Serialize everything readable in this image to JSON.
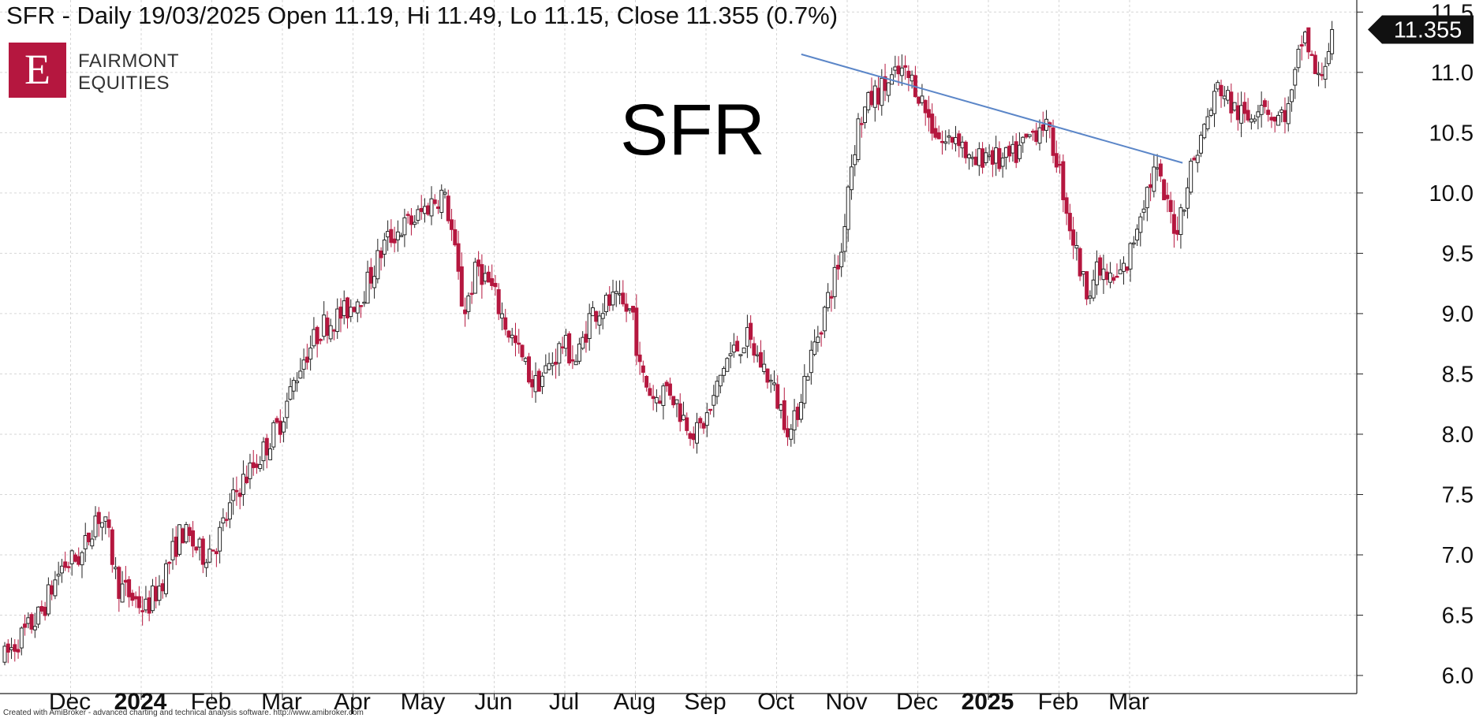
{
  "header": "SFR - Daily 19/03/2025 Open 11.19, Hi 11.49, Lo 11.15, Close 11.355 (0.7%)",
  "logo": {
    "brand_line1": "FAIRMONT",
    "brand_line2": "EQUITIES",
    "monogram": "E",
    "color": "#b5173f"
  },
  "footer_credit": "Created with AmiBroker - advanced charting and technical analysis software. http://www.amibroker.com",
  "chart_data": {
    "type": "candlestick",
    "title": "SFR",
    "ylim": [
      5.85,
      11.6
    ],
    "yticks": [
      "6.0",
      "6.5",
      "7.0",
      "7.5",
      "8.0",
      "8.5",
      "9.0",
      "9.5",
      "10.0",
      "10.5",
      "11.0",
      "11.5"
    ],
    "last_close": "11.355",
    "xticks": [
      {
        "label": "Dec",
        "bold": false,
        "x": 1
      },
      {
        "label": "2024",
        "bold": true,
        "x": 2
      },
      {
        "label": "Feb",
        "bold": false,
        "x": 3
      },
      {
        "label": "Mar",
        "bold": false,
        "x": 4
      },
      {
        "label": "Apr",
        "bold": false,
        "x": 5
      },
      {
        "label": "May",
        "bold": false,
        "x": 6
      },
      {
        "label": "Jun",
        "bold": false,
        "x": 7
      },
      {
        "label": "Jul",
        "bold": false,
        "x": 8
      },
      {
        "label": "Aug",
        "bold": false,
        "x": 9
      },
      {
        "label": "Sep",
        "bold": false,
        "x": 10
      },
      {
        "label": "Oct",
        "bold": false,
        "x": 11
      },
      {
        "label": "Nov",
        "bold": false,
        "x": 12
      },
      {
        "label": "Dec",
        "bold": false,
        "x": 13
      },
      {
        "label": "2025",
        "bold": true,
        "x": 14
      },
      {
        "label": "Feb",
        "bold": false,
        "x": 15
      },
      {
        "label": "Mar",
        "bold": false,
        "x": 16
      }
    ],
    "price_path": [
      [
        0,
        6.15
      ],
      [
        0.2,
        6.3
      ],
      [
        0.5,
        6.5
      ],
      [
        0.8,
        6.9
      ],
      [
        1.1,
        7.0
      ],
      [
        1.3,
        7.35
      ],
      [
        1.45,
        7.2
      ],
      [
        1.6,
        6.75
      ],
      [
        1.8,
        6.65
      ],
      [
        2.0,
        6.55
      ],
      [
        2.2,
        6.75
      ],
      [
        2.5,
        7.2
      ],
      [
        2.8,
        7.0
      ],
      [
        3.0,
        7.1
      ],
      [
        3.3,
        7.55
      ],
      [
        3.6,
        7.8
      ],
      [
        3.9,
        8.1
      ],
      [
        4.2,
        8.6
      ],
      [
        4.5,
        8.9
      ],
      [
        4.8,
        9.0
      ],
      [
        5.1,
        9.2
      ],
      [
        5.4,
        9.6
      ],
      [
        5.6,
        9.7
      ],
      [
        5.85,
        9.8
      ],
      [
        6.0,
        9.9
      ],
      [
        6.2,
        10.0
      ],
      [
        6.3,
        9.8
      ],
      [
        6.5,
        9.0
      ],
      [
        6.7,
        9.4
      ],
      [
        6.9,
        9.2
      ],
      [
        7.1,
        8.9
      ],
      [
        7.3,
        8.65
      ],
      [
        7.5,
        8.4
      ],
      [
        7.7,
        8.55
      ],
      [
        7.9,
        8.75
      ],
      [
        8.1,
        8.6
      ],
      [
        8.3,
        9.0
      ],
      [
        8.6,
        9.1
      ],
      [
        8.9,
        9.0
      ],
      [
        9.0,
        8.5
      ],
      [
        9.2,
        8.3
      ],
      [
        9.4,
        8.4
      ],
      [
        9.6,
        8.15
      ],
      [
        9.8,
        8.0
      ],
      [
        10.0,
        8.2
      ],
      [
        10.2,
        8.6
      ],
      [
        10.5,
        8.8
      ],
      [
        10.8,
        8.5
      ],
      [
        11.0,
        8.2
      ],
      [
        11.15,
        8.0
      ],
      [
        11.3,
        8.4
      ],
      [
        11.5,
        8.8
      ],
      [
        11.7,
        9.2
      ],
      [
        11.85,
        9.5
      ],
      [
        11.95,
        10.1
      ],
      [
        12.1,
        10.6
      ],
      [
        12.3,
        10.8
      ],
      [
        12.5,
        10.9
      ],
      [
        12.7,
        11.0
      ],
      [
        12.9,
        10.9
      ],
      [
        13.1,
        10.6
      ],
      [
        13.3,
        10.4
      ],
      [
        13.5,
        10.5
      ],
      [
        13.7,
        10.2
      ],
      [
        13.9,
        10.35
      ],
      [
        14.1,
        10.25
      ],
      [
        14.3,
        10.3
      ],
      [
        14.5,
        10.45
      ],
      [
        14.7,
        10.6
      ],
      [
        14.9,
        10.3
      ],
      [
        15.1,
        9.7
      ],
      [
        15.3,
        9.2
      ],
      [
        15.5,
        9.35
      ],
      [
        15.7,
        9.25
      ],
      [
        15.9,
        9.4
      ],
      [
        16.1,
        9.9
      ],
      [
        16.3,
        10.2
      ],
      [
        16.45,
        9.9
      ],
      [
        16.6,
        9.7
      ],
      [
        16.8,
        10.2
      ],
      [
        17.0,
        10.55
      ],
      [
        17.2,
        10.9
      ],
      [
        17.4,
        10.7
      ],
      [
        17.6,
        10.6
      ],
      [
        17.8,
        10.8
      ],
      [
        18.0,
        10.6
      ],
      [
        18.2,
        10.7
      ],
      [
        18.4,
        11.35
      ],
      [
        18.6,
        10.9
      ],
      [
        18.8,
        11.3
      ]
    ],
    "trendline": {
      "from": [
        11.35,
        11.15
      ],
      "to": [
        16.75,
        10.25
      ],
      "color": "#5b86c8"
    },
    "up_color": "#ffffff",
    "down_color": "#b5173f",
    "tag_color": "#111111"
  }
}
